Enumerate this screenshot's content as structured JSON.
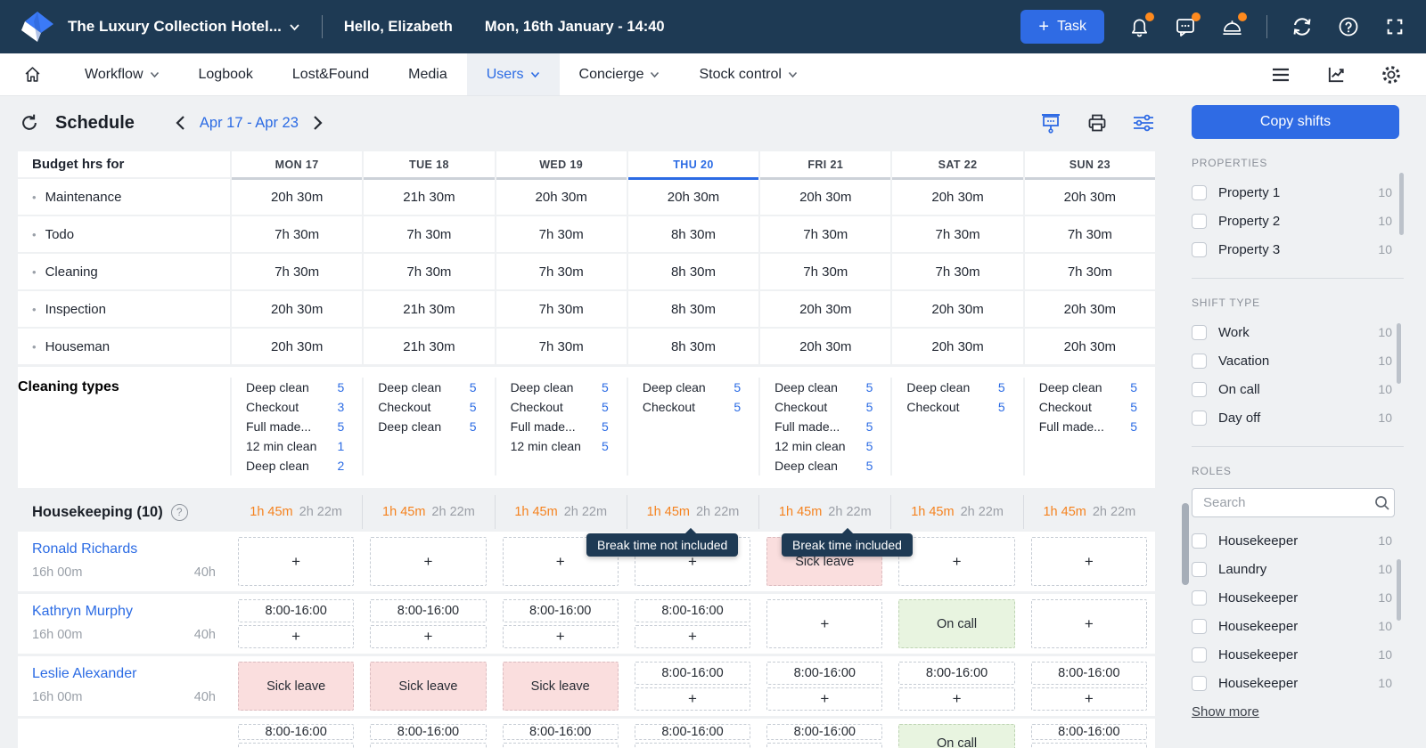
{
  "topbar": {
    "hotel_name": "The Luxury Collection Hotel...",
    "greeting": "Hello, Elizabeth",
    "datetime": "Mon, 16th January - 14:40",
    "task_button": "Task"
  },
  "nav": {
    "items": [
      {
        "label": "Workflow",
        "dropdown": true,
        "active": false
      },
      {
        "label": "Logbook",
        "dropdown": false,
        "active": false
      },
      {
        "label": "Lost&Found",
        "dropdown": false,
        "active": false
      },
      {
        "label": "Media",
        "dropdown": false,
        "active": false
      },
      {
        "label": "Users",
        "dropdown": true,
        "active": true
      },
      {
        "label": "Concierge",
        "dropdown": true,
        "active": false
      },
      {
        "label": "Stock control",
        "dropdown": true,
        "active": false
      }
    ]
  },
  "toolbar": {
    "title": "Schedule",
    "date_range": "Apr 17 - Apr 23",
    "copy_button": "Copy shifts"
  },
  "grid": {
    "corner_label": "Budget hrs for",
    "days": [
      {
        "label": "MON 17",
        "active": false
      },
      {
        "label": "TUE 18",
        "active": false
      },
      {
        "label": "WED 19",
        "active": false
      },
      {
        "label": "THU 20",
        "active": true
      },
      {
        "label": "FRI 21",
        "active": false
      },
      {
        "label": "SAT 22",
        "active": false
      },
      {
        "label": "SUN 23",
        "active": false
      }
    ],
    "budget_rows": [
      {
        "label": "Maintenance",
        "values": [
          "20h 30m",
          "21h 30m",
          "20h 30m",
          "20h 30m",
          "20h 30m",
          "20h 30m",
          "20h 30m"
        ]
      },
      {
        "label": "Todo",
        "values": [
          "7h 30m",
          "7h 30m",
          "7h 30m",
          "8h 30m",
          "7h 30m",
          "7h 30m",
          "7h 30m"
        ]
      },
      {
        "label": "Cleaning",
        "values": [
          "7h 30m",
          "7h 30m",
          "7h 30m",
          "8h 30m",
          "7h 30m",
          "7h 30m",
          "7h 30m"
        ]
      },
      {
        "label": "Inspection",
        "values": [
          "20h 30m",
          "21h 30m",
          "7h 30m",
          "8h 30m",
          "20h 30m",
          "20h 30m",
          "20h 30m"
        ]
      },
      {
        "label": "Houseman",
        "values": [
          "20h 30m",
          "21h 30m",
          "7h 30m",
          "8h 30m",
          "20h 30m",
          "20h 30m",
          "20h 30m"
        ]
      }
    ],
    "cleaning_types": {
      "label": "Cleaning types",
      "columns": [
        [
          {
            "name": "Deep clean",
            "count": "5"
          },
          {
            "name": "Checkout",
            "count": "3"
          },
          {
            "name": "Full made...",
            "count": "5"
          },
          {
            "name": "12 min clean",
            "count": "1"
          },
          {
            "name": "Deep clean",
            "count": "2"
          }
        ],
        [
          {
            "name": "Deep clean",
            "count": "5"
          },
          {
            "name": "Checkout",
            "count": "5"
          },
          {
            "name": "Deep clean",
            "count": "5"
          }
        ],
        [
          {
            "name": "Deep clean",
            "count": "5"
          },
          {
            "name": "Checkout",
            "count": "5"
          },
          {
            "name": "Full made...",
            "count": "5"
          },
          {
            "name": "12 min clean",
            "count": "5"
          }
        ],
        [
          {
            "name": "Deep clean",
            "count": "5"
          },
          {
            "name": "Checkout",
            "count": "5"
          }
        ],
        [
          {
            "name": "Deep clean",
            "count": "5"
          },
          {
            "name": "Checkout",
            "count": "5"
          },
          {
            "name": "Full made...",
            "count": "5"
          },
          {
            "name": "12 min clean",
            "count": "5"
          },
          {
            "name": "Deep clean",
            "count": "5"
          }
        ],
        [
          {
            "name": "Deep clean",
            "count": "5"
          },
          {
            "name": "Checkout",
            "count": "5"
          }
        ],
        [
          {
            "name": "Deep clean",
            "count": "5"
          },
          {
            "name": "Checkout",
            "count": "5"
          },
          {
            "name": "Full made...",
            "count": "5"
          }
        ]
      ]
    }
  },
  "housekeeping": {
    "title": "Housekeeping (10)",
    "day_stats": [
      {
        "break_time": "1h 45m",
        "worked": "2h 22m"
      },
      {
        "break_time": "1h 45m",
        "worked": "2h 22m"
      },
      {
        "break_time": "1h 45m",
        "worked": "2h 22m"
      },
      {
        "break_time": "1h 45m",
        "worked": "2h 22m"
      },
      {
        "break_time": "1h 45m",
        "worked": "2h 22m"
      },
      {
        "break_time": "1h 45m",
        "worked": "2h 22m"
      },
      {
        "break_time": "1h 45m",
        "worked": "2h 22m"
      }
    ],
    "tooltips": [
      {
        "text": "Break time not included",
        "day": "THU 20"
      },
      {
        "text": "Break time included",
        "day": "FRI 21"
      }
    ],
    "employees": [
      {
        "name": "Ronald Richards",
        "hours": "16h 00m",
        "weekly": "40h",
        "partial": false,
        "cells": [
          {
            "type": "plus"
          },
          {
            "type": "plus"
          },
          {
            "type": "plus"
          },
          {
            "type": "plus"
          },
          {
            "type": "sick",
            "label": "Sick leave"
          },
          {
            "type": "plus"
          },
          {
            "type": "plus"
          }
        ]
      },
      {
        "name": "Kathryn Murphy",
        "hours": "16h 00m",
        "weekly": "40h",
        "partial": false,
        "cells": [
          {
            "type": "shift",
            "time": "8:00-16:00"
          },
          {
            "type": "shift",
            "time": "8:00-16:00"
          },
          {
            "type": "shift",
            "time": "8:00-16:00"
          },
          {
            "type": "shift",
            "time": "8:00-16:00"
          },
          {
            "type": "plus"
          },
          {
            "type": "oncall",
            "label": "On call"
          },
          {
            "type": "plus"
          }
        ]
      },
      {
        "name": "Leslie Alexander",
        "hours": "16h 00m",
        "weekly": "40h",
        "partial": false,
        "cells": [
          {
            "type": "sick",
            "label": "Sick leave"
          },
          {
            "type": "sick",
            "label": "Sick leave"
          },
          {
            "type": "sick",
            "label": "Sick leave"
          },
          {
            "type": "shift",
            "time": "8:00-16:00"
          },
          {
            "type": "shift",
            "time": "8:00-16:00"
          },
          {
            "type": "shift",
            "time": "8:00-16:00"
          },
          {
            "type": "shift",
            "time": "8:00-16:00"
          }
        ]
      },
      {
        "name": "",
        "hours": "",
        "weekly": "",
        "partial": true,
        "cells": [
          {
            "type": "shift",
            "time": "8:00-16:00"
          },
          {
            "type": "shift",
            "time": "8:00-16:00"
          },
          {
            "type": "shift",
            "time": "8:00-16:00"
          },
          {
            "type": "shift",
            "time": "8:00-16:00"
          },
          {
            "type": "shift",
            "time": "8:00-16:00"
          },
          {
            "type": "oncall",
            "label": "On call"
          },
          {
            "type": "shift",
            "time": "8:00-16:00"
          }
        ]
      }
    ]
  },
  "sidebar": {
    "properties": {
      "title": "PROPERTIES",
      "items": [
        {
          "label": "Property 1",
          "count": "10"
        },
        {
          "label": "Property 2",
          "count": "10"
        },
        {
          "label": "Property 3",
          "count": "10"
        }
      ]
    },
    "shift_type": {
      "title": "SHIFT TYPE",
      "items": [
        {
          "label": "Work",
          "count": "10"
        },
        {
          "label": "Vacation",
          "count": "10"
        },
        {
          "label": "On call",
          "count": "10"
        },
        {
          "label": "Day off",
          "count": "10"
        }
      ]
    },
    "roles": {
      "title": "ROLES",
      "search_placeholder": "Search",
      "items": [
        {
          "label": "Housekeeper",
          "count": "10"
        },
        {
          "label": "Laundry",
          "count": "10"
        },
        {
          "label": "Housekeeper",
          "count": "10"
        },
        {
          "label": "Housekeeper",
          "count": "10"
        },
        {
          "label": "Housekeeper",
          "count": "10"
        },
        {
          "label": "Housekeeper",
          "count": "10"
        }
      ],
      "show_more": "Show more"
    }
  },
  "glyphs": {
    "plus": "+",
    "question": "?"
  }
}
